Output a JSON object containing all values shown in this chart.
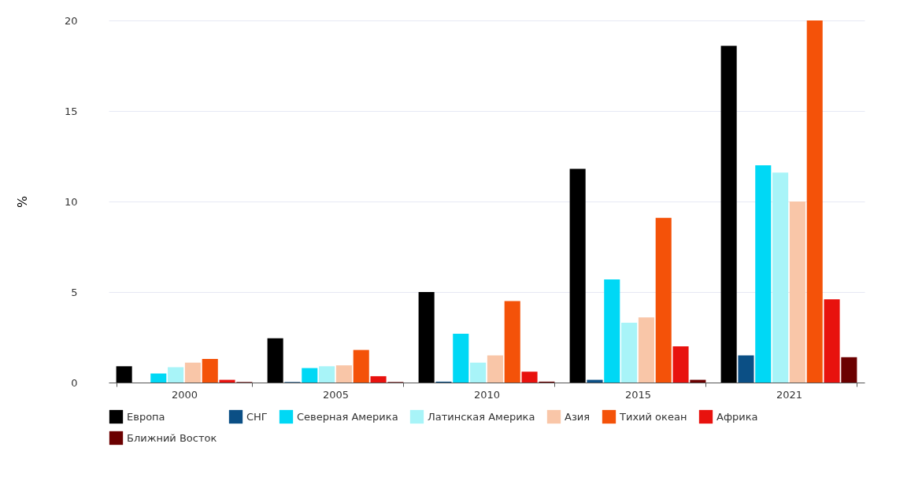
{
  "chart_data": {
    "type": "bar",
    "ylabel": "%",
    "categories": [
      "2000",
      "2005",
      "2010",
      "2015",
      "2021"
    ],
    "series": [
      {
        "name": "Европа",
        "color": "#000000",
        "values": [
          0.9,
          2.45,
          5.0,
          11.8,
          18.6
        ]
      },
      {
        "name": "СНГ",
        "color": "#0b4f85",
        "values": [
          0,
          0.03,
          0.05,
          0.15,
          1.5
        ]
      },
      {
        "name": "Северная Америка",
        "color": "#00d8f5",
        "values": [
          0.5,
          0.8,
          2.7,
          5.7,
          12.0
        ]
      },
      {
        "name": "Латинская Америка",
        "color": "#a8f4f8",
        "values": [
          0.85,
          0.9,
          1.1,
          3.3,
          11.6
        ]
      },
      {
        "name": "Азия",
        "color": "#f9c6a8",
        "values": [
          1.1,
          0.95,
          1.5,
          3.6,
          10.0
        ]
      },
      {
        "name": "Тихий океан",
        "color": "#f45209",
        "values": [
          1.3,
          1.8,
          4.5,
          9.1,
          20.0
        ]
      },
      {
        "name": "Африка",
        "color": "#e8120e",
        "values": [
          0.15,
          0.35,
          0.6,
          2.0,
          4.6
        ]
      },
      {
        "name": "Ближний Восток",
        "color": "#6b0000",
        "values": [
          0.03,
          0.03,
          0.05,
          0.15,
          1.4
        ]
      }
    ],
    "ylim": [
      0,
      20
    ],
    "yticks": [
      0,
      5,
      10,
      15,
      20
    ],
    "grid": "y",
    "legend": "bottom"
  }
}
